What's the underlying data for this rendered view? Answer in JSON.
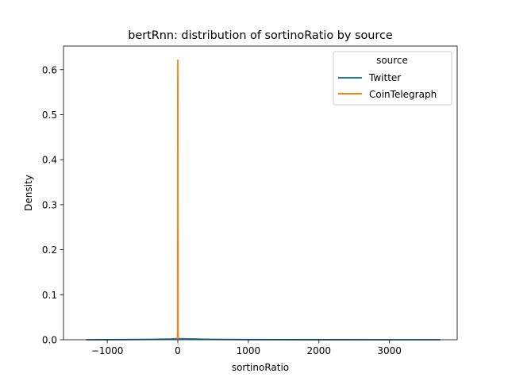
{
  "chart_data": {
    "type": "line",
    "title": "bertRnn: distribution of sortinoRatio by source",
    "xlabel": "sortinoRatio",
    "ylabel": "Density",
    "xlim": [
      -1620,
      3960
    ],
    "ylim": [
      0,
      0.6525
    ],
    "xticks": [
      -1000,
      0,
      1000,
      2000,
      3000
    ],
    "xtick_labels": [
      "−1000",
      "0",
      "1000",
      "2000",
      "3000"
    ],
    "yticks": [
      0.0,
      0.1,
      0.2,
      0.3,
      0.4,
      0.5,
      0.6
    ],
    "ytick_labels": [
      "0.0",
      "0.1",
      "0.2",
      "0.3",
      "0.4",
      "0.5",
      "0.6"
    ],
    "grid": false,
    "legend": {
      "title": "source",
      "placement": "top-right"
    },
    "series": [
      {
        "name": "Twitter",
        "color": "#1f77b4",
        "x": [
          -1300,
          -800,
          -400,
          -100,
          0,
          100,
          300,
          500,
          1000,
          2000,
          3000,
          3720
        ],
        "y": [
          0.0,
          0.0003,
          0.0008,
          0.0018,
          0.0025,
          0.0022,
          0.0015,
          0.0008,
          0.0003,
          0.0001,
          5e-05,
          0.0
        ]
      },
      {
        "name": "CoinTelegraph",
        "color": "#ff7f0e",
        "x": [
          -5,
          -3,
          -2,
          -1,
          0,
          1,
          2,
          3,
          5
        ],
        "y": [
          0.0,
          0.02,
          0.25,
          0.55,
          0.621,
          0.55,
          0.25,
          0.02,
          0.0
        ]
      }
    ]
  }
}
